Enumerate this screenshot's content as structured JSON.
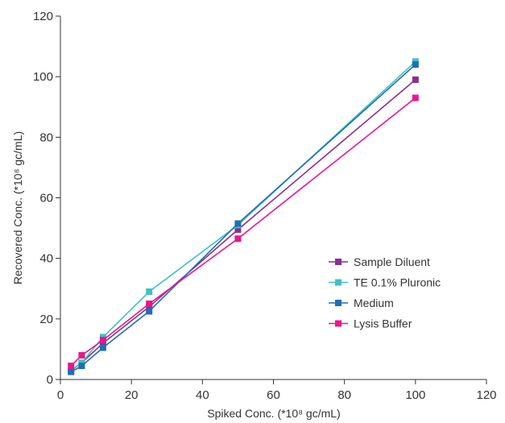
{
  "chart_data": {
    "type": "line",
    "xlabel": "Spiked Conc. (*10⁸ gc/mL)",
    "ylabel": "Recovered Conc. (*10⁸ gc/mL)",
    "xlim": [
      0,
      120
    ],
    "ylim": [
      0,
      120
    ],
    "xticks": [
      0,
      20,
      40,
      60,
      80,
      100,
      120
    ],
    "yticks": [
      0,
      20,
      40,
      60,
      80,
      100,
      120
    ],
    "grid": false,
    "legend_position": "right-center",
    "x": [
      3,
      6,
      12,
      25,
      50,
      100
    ],
    "series": [
      {
        "name": "Sample Diluent",
        "color": "#8B2F8F",
        "values": [
          3,
          5.5,
          12,
          24,
          49.5,
          99
        ]
      },
      {
        "name": "TE 0.1% Pluronic",
        "color": "#3EC1C1",
        "values": [
          3,
          5.5,
          14,
          29,
          51,
          105
        ]
      },
      {
        "name": "Medium",
        "color": "#1F6FB5",
        "values": [
          2.5,
          4.5,
          10.5,
          22.5,
          51.5,
          104
        ]
      },
      {
        "name": "Lysis Buffer",
        "color": "#E8168F",
        "values": [
          4.5,
          8,
          13,
          25,
          46.5,
          93
        ]
      }
    ]
  }
}
